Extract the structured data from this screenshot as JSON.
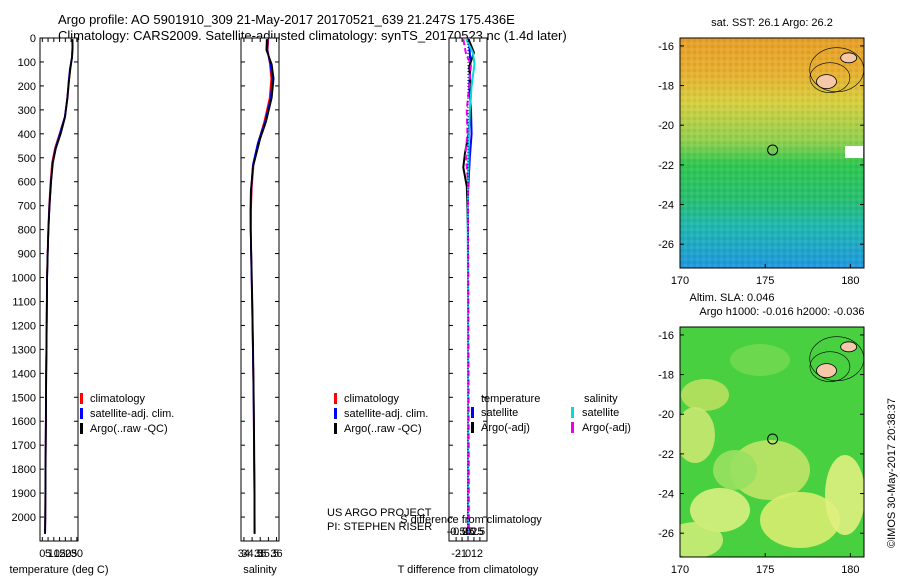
{
  "header": {
    "line1": "Argo profile: AO 5901910_309 21-May-2017 20170521_639 21.247S 175.436E",
    "line2": "Climatology: CARS2009. Satellite-adjusted climatology: synTS_20170523.nc (1.4d later)"
  },
  "colors": {
    "climatology": "#ff0000",
    "satellite": "#0000ff",
    "argo": "#000000",
    "sat_salinity": "#00dddd",
    "argo_salinity": "#ee00ee"
  },
  "credit": "©IMOS 30-May-2017 20:38:37",
  "chart_data": [
    {
      "type": "line",
      "xlabel": "temperature (deg C)",
      "xticks": [
        0,
        5,
        10,
        15,
        20,
        25,
        30
      ],
      "xlim": [
        -2,
        31
      ],
      "ylim": [
        0,
        2100
      ],
      "yticks": [
        0,
        100,
        200,
        300,
        400,
        500,
        600,
        700,
        800,
        900,
        1000,
        1100,
        1200,
        1300,
        1400,
        1500,
        1600,
        1700,
        1800,
        1900,
        2000
      ],
      "legend": [
        "climatology",
        "satellite-adj. clim.",
        "Argo(..raw -QC)"
      ],
      "series": [
        {
          "color": "#ff0000",
          "points": [
            [
              26.0,
              5
            ],
            [
              26.1,
              40
            ],
            [
              25.7,
              80
            ],
            [
              24.2,
              130
            ],
            [
              23.2,
              180
            ],
            [
              22.0,
              250
            ],
            [
              19.5,
              330
            ],
            [
              15.0,
              400
            ],
            [
              11.0,
              460
            ],
            [
              8.5,
              520
            ],
            [
              7.2,
              600
            ],
            [
              6.0,
              700
            ],
            [
              5.2,
              800
            ],
            [
              4.6,
              900
            ],
            [
              4.1,
              1000
            ],
            [
              3.7,
              1200
            ],
            [
              3.3,
              1400
            ],
            [
              3.0,
              1600
            ],
            [
              2.8,
              1800
            ],
            [
              2.5,
              2000
            ],
            [
              2.3,
              2070
            ]
          ]
        },
        {
          "color": "#0000ff",
          "points": [
            [
              26.1,
              5
            ],
            [
              26.2,
              40
            ],
            [
              25.8,
              80
            ],
            [
              24.0,
              130
            ],
            [
              22.9,
              180
            ],
            [
              21.7,
              250
            ],
            [
              19.5,
              330
            ],
            [
              15.3,
              400
            ],
            [
              11.5,
              460
            ],
            [
              9.0,
              520
            ],
            [
              7.5,
              600
            ],
            [
              6.2,
              700
            ],
            [
              5.3,
              800
            ],
            [
              4.7,
              900
            ],
            [
              4.2,
              1000
            ],
            [
              3.8,
              1200
            ],
            [
              3.4,
              1400
            ],
            [
              3.1,
              1600
            ],
            [
              2.9,
              1800
            ],
            [
              2.6,
              2000
            ],
            [
              2.4,
              2070
            ]
          ]
        },
        {
          "color": "#000000",
          "points": [
            [
              26.2,
              5
            ],
            [
              26.3,
              40
            ],
            [
              25.9,
              80
            ],
            [
              24.3,
              130
            ],
            [
              23.1,
              180
            ],
            [
              21.8,
              250
            ],
            [
              19.8,
              330
            ],
            [
              16.0,
              400
            ],
            [
              11.8,
              460
            ],
            [
              9.2,
              520
            ],
            [
              7.6,
              600
            ],
            [
              6.3,
              700
            ],
            [
              5.3,
              800
            ],
            [
              4.7,
              900
            ],
            [
              4.2,
              1000
            ],
            [
              3.8,
              1200
            ],
            [
              3.4,
              1400
            ],
            [
              3.1,
              1600
            ],
            [
              2.8,
              1800
            ],
            [
              2.6,
              2000
            ],
            [
              2.4,
              2070
            ]
          ]
        }
      ]
    },
    {
      "type": "line",
      "xlabel": "salinity",
      "xticks": [
        34,
        34.5,
        35,
        35.5,
        36
      ],
      "xlim": [
        33.82,
        36.15
      ],
      "ylim": [
        0,
        2100
      ],
      "legend": [
        "climatology",
        "satellite-adj. clim.",
        "Argo(..raw -QC)"
      ],
      "annotation": [
        "US ARGO PROJECT",
        "PI: STEPHEN RISER"
      ],
      "series": [
        {
          "color": "#ff0000",
          "points": [
            [
              35.5,
              5
            ],
            [
              35.45,
              50
            ],
            [
              35.6,
              110
            ],
            [
              35.68,
              170
            ],
            [
              35.58,
              250
            ],
            [
              35.25,
              350
            ],
            [
              34.9,
              430
            ],
            [
              34.6,
              520
            ],
            [
              34.48,
              620
            ],
            [
              34.43,
              720
            ],
            [
              34.42,
              800
            ],
            [
              34.44,
              900
            ],
            [
              34.5,
              1100
            ],
            [
              34.55,
              1300
            ],
            [
              34.59,
              1500
            ],
            [
              34.62,
              1700
            ],
            [
              34.64,
              1900
            ],
            [
              34.65,
              2070
            ]
          ]
        },
        {
          "color": "#0000ff",
          "points": [
            [
              35.45,
              5
            ],
            [
              35.43,
              50
            ],
            [
              35.62,
              110
            ],
            [
              35.75,
              170
            ],
            [
              35.65,
              250
            ],
            [
              35.3,
              350
            ],
            [
              34.85,
              440
            ],
            [
              34.55,
              530
            ],
            [
              34.45,
              630
            ],
            [
              34.42,
              720
            ],
            [
              34.42,
              800
            ],
            [
              34.44,
              900
            ],
            [
              34.5,
              1100
            ],
            [
              34.55,
              1300
            ],
            [
              34.59,
              1500
            ],
            [
              34.62,
              1700
            ],
            [
              34.64,
              1900
            ],
            [
              34.65,
              2070
            ]
          ]
        },
        {
          "color": "#000000",
          "points": [
            [
              35.4,
              5
            ],
            [
              35.38,
              50
            ],
            [
              35.7,
              110
            ],
            [
              35.82,
              170
            ],
            [
              35.7,
              250
            ],
            [
              35.35,
              350
            ],
            [
              35.0,
              420
            ],
            [
              34.55,
              540
            ],
            [
              34.42,
              640
            ],
            [
              34.4,
              720
            ],
            [
              34.41,
              800
            ],
            [
              34.45,
              900
            ],
            [
              34.51,
              1100
            ],
            [
              34.56,
              1300
            ],
            [
              34.6,
              1500
            ],
            [
              34.63,
              1700
            ],
            [
              34.65,
              1900
            ],
            [
              34.66,
              2070
            ]
          ]
        }
      ]
    },
    {
      "type": "line",
      "xlabel": "T difference from climatology",
      "toplabel": "S difference from climatology",
      "xticks": [
        -2,
        -1,
        0,
        1,
        2
      ],
      "topticks": [
        "-0.5",
        "-0.25",
        "0",
        "0.25",
        "0.5"
      ],
      "xlim": [
        -3.2,
        3.2
      ],
      "ylim": [
        0,
        2100
      ],
      "legend_temperature": {
        "title": "temperature",
        "items": [
          "satellite",
          "Argo(-adj)"
        ]
      },
      "legend_salinity": {
        "title": "salinity",
        "items": [
          "satellite",
          "Argo(-adj)"
        ]
      },
      "series": [
        {
          "name": "satellite",
          "color": "#0000ff",
          "points": [
            [
              0.1,
              5
            ],
            [
              0.3,
              60
            ],
            [
              0.4,
              120
            ],
            [
              0.2,
              200
            ],
            [
              0.5,
              300
            ],
            [
              0.6,
              400
            ],
            [
              0.3,
              500
            ],
            [
              0.1,
              600
            ],
            [
              -0.1,
              700
            ],
            [
              0.0,
              800
            ],
            [
              0.0,
              1000
            ],
            [
              0.0,
              1500
            ],
            [
              0.0,
              2070
            ]
          ]
        },
        {
          "name": "Argo(-adj)",
          "color": "#000000",
          "points": [
            [
              0.1,
              5
            ],
            [
              1.0,
              60
            ],
            [
              0.2,
              120
            ],
            [
              0.5,
              220
            ],
            [
              0.3,
              330
            ],
            [
              0.1,
              400
            ],
            [
              -0.5,
              480
            ],
            [
              -0.8,
              540
            ],
            [
              -0.2,
              620
            ],
            [
              -0.1,
              700
            ],
            [
              0.0,
              800
            ],
            [
              0.0,
              1000
            ],
            [
              0.0,
              1500
            ],
            [
              0.0,
              2070
            ]
          ]
        },
        {
          "name": "satellite (salinity)",
          "color": "#00dddd",
          "points": [
            [
              -0.3,
              5
            ],
            [
              0.8,
              60
            ],
            [
              1.1,
              110
            ],
            [
              0.6,
              200
            ],
            [
              0.3,
              300
            ],
            [
              0.1,
              450
            ],
            [
              0.0,
              600
            ],
            [
              -0.05,
              800
            ],
            [
              0.0,
              1000
            ],
            [
              0.0,
              1500
            ],
            [
              0.05,
              2070
            ]
          ]
        },
        {
          "name": "Argo(-adj) (salinity)",
          "color": "#ee00ee",
          "points": [
            [
              -0.8,
              5
            ],
            [
              -0.3,
              70
            ],
            [
              0.5,
              110
            ],
            [
              0.2,
              200
            ],
            [
              -0.2,
              300
            ],
            [
              -0.1,
              400
            ],
            [
              -0.4,
              480
            ],
            [
              0.0,
              600
            ],
            [
              0.0,
              800
            ],
            [
              0.05,
              1000
            ],
            [
              0.1,
              1500
            ],
            [
              0.15,
              2070
            ]
          ]
        }
      ]
    },
    {
      "type": "heatmap",
      "title": "sat. SST: 26.1  Argo: 26.2",
      "xticks": [
        "170",
        "175",
        "180"
      ],
      "yticks": [
        "-16",
        "-18",
        "-20",
        "-22",
        "-24",
        "-26"
      ],
      "xlim": [
        170,
        180.8
      ],
      "ylim": [
        -27.2,
        -15.6
      ],
      "marker": {
        "lon": 175.436,
        "lat": -21.247
      }
    },
    {
      "type": "heatmap",
      "title_line1": "Altim. SLA: 0.046",
      "title_line2": "Argo h1000: -0.016 h2000: -0.036",
      "xticks": [
        "170",
        "175",
        "180"
      ],
      "yticks": [
        "-16",
        "-18",
        "-20",
        "-22",
        "-24",
        "-26"
      ],
      "xlim": [
        170,
        180.8
      ],
      "ylim": [
        -27.2,
        -15.6
      ],
      "marker": {
        "lon": 175.436,
        "lat": -21.247
      }
    }
  ]
}
